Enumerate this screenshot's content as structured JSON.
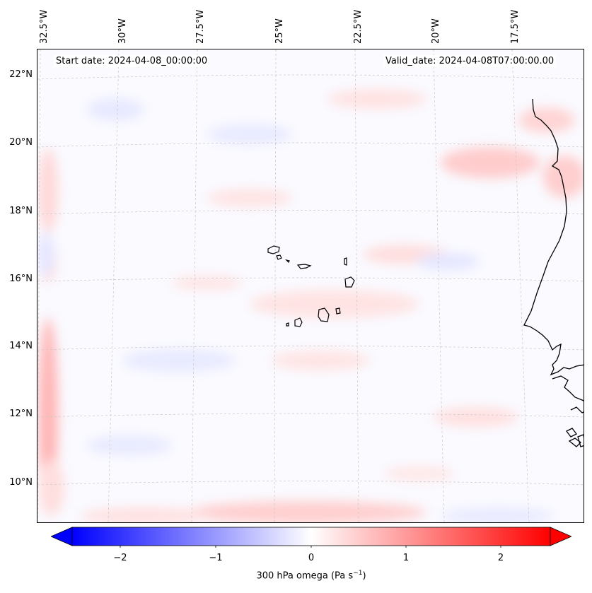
{
  "map": {
    "start_date": "Start date: 2024-04-08_00:00:00",
    "valid_date": "Valid_date: 2024-04-08T07:00:00.00",
    "lon_labels": [
      "32.5°W",
      "30°W",
      "27.5°W",
      "25°W",
      "22.5°W",
      "20°W",
      "17.5°W"
    ],
    "lat_labels": [
      "22°N",
      "20°N",
      "18°N",
      "16°N",
      "14°N",
      "12°N",
      "10°N"
    ],
    "gridlines": true,
    "field_colors": {
      "positive": "#ff0000",
      "negative": "#0000ff",
      "neutral": "#ffffff"
    }
  },
  "colorbar": {
    "ticks": [
      "−2",
      "−1",
      "0",
      "1",
      "2"
    ],
    "label_text": "300 hPa omega (Pa s",
    "label_exp": "−1",
    "label_close": ")",
    "range": [
      -2.6,
      2.6
    ],
    "extend": "both"
  }
}
